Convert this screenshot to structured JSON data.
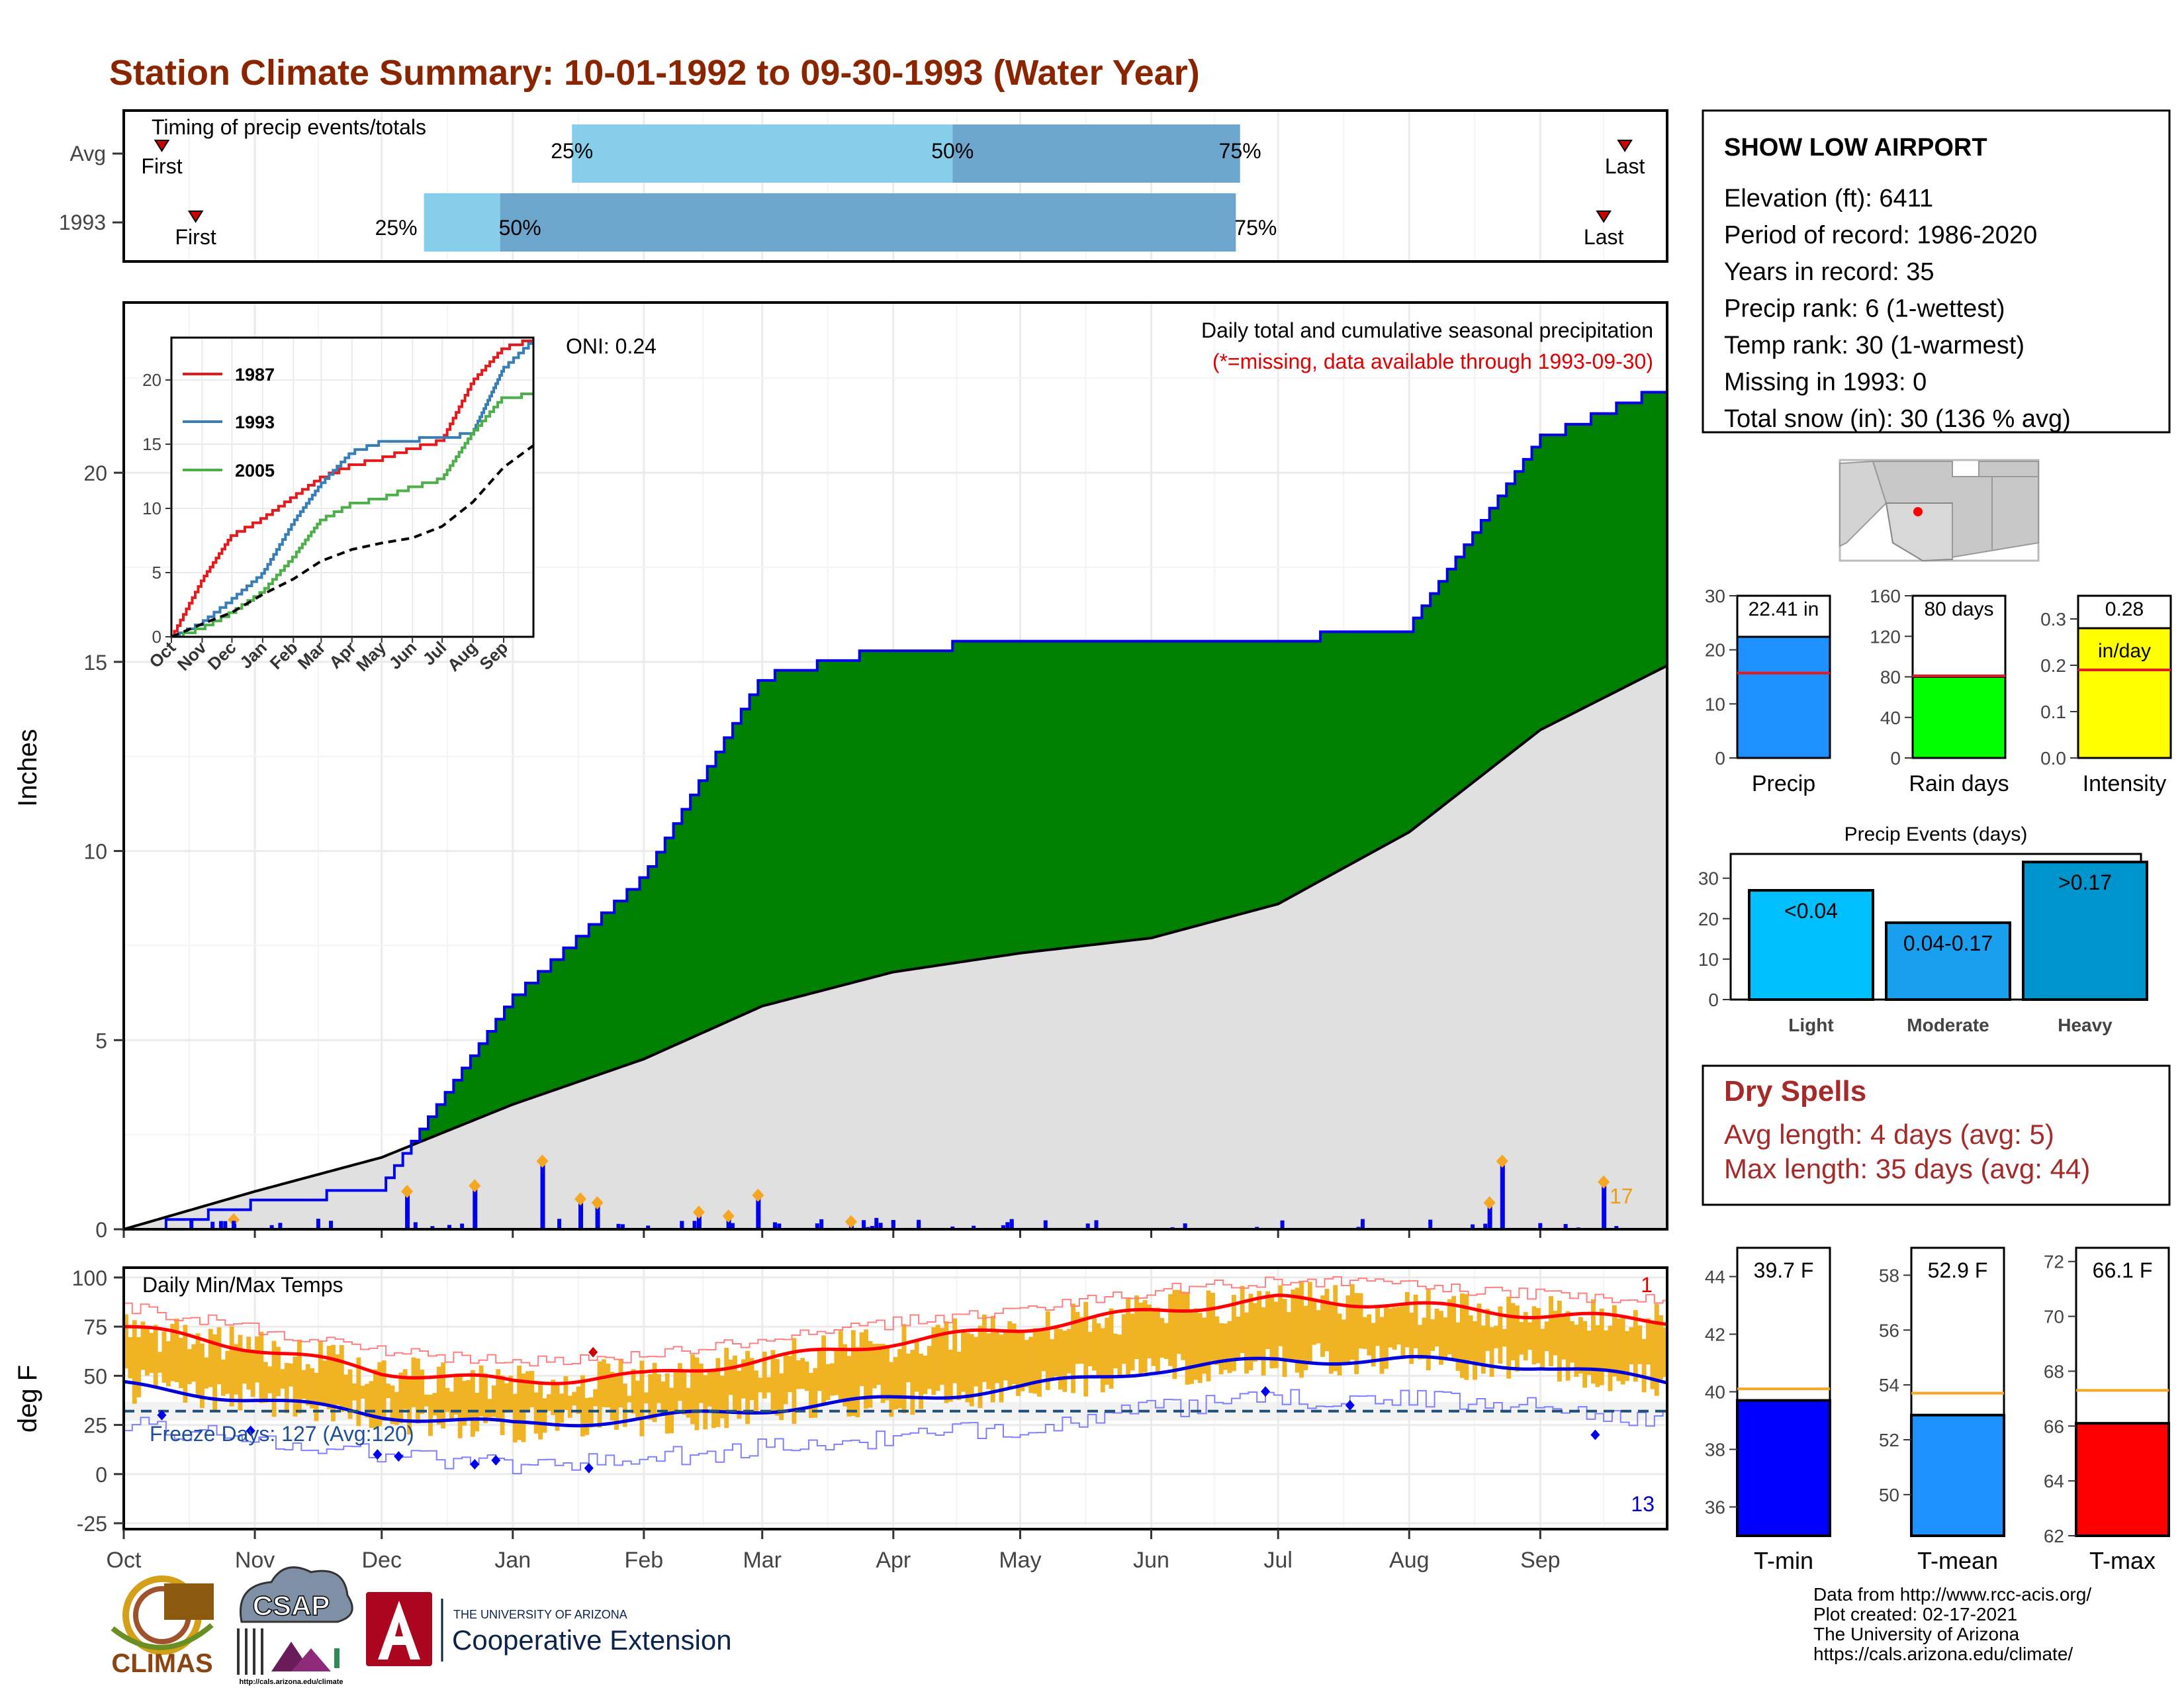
{
  "title": "Station Climate Summary: 10-01-1992 to 09-30-1993 (Water Year)",
  "colors": {
    "title": "#8B2500",
    "obs_fill": "#008000",
    "obs_line": "#0000EE",
    "avg_fill": "#E0E0E0",
    "pre_fill": "#8B5A0E",
    "light_blue": "#87CEEB",
    "mid_blue": "#6CA6CD",
    "dry_red": "#A52A2A",
    "temp_bar": "#F0B323"
  },
  "timing_panel": {
    "label": "Timing of precip events/totals",
    "rows": [
      "Avg",
      "1993"
    ],
    "avg": {
      "first": "First",
      "last": "Last",
      "p25": "25%",
      "p50": "50%",
      "p75": "75%",
      "first_day": 9,
      "p25_day": 106,
      "p50_day": 196,
      "p75_day": 264,
      "last_day": 355
    },
    "obs": {
      "first": "First",
      "last": "Last",
      "p25": "25%",
      "p50": "50%",
      "p75": "75%",
      "first_day": 17,
      "p25_day": 71,
      "p50_day": 89,
      "p75_day": 263,
      "last_day": 350
    }
  },
  "precip_panel": {
    "ylabel": "Inches",
    "note1": "Daily total and cumulative seasonal precipitation",
    "note2": "(*=missing, data available through 1993-09-30)",
    "oni": "ONI: 0.24",
    "corner_value": "17",
    "yticks": [
      "0",
      "5",
      "10",
      "15",
      "20"
    ]
  },
  "inset": {
    "legend": [
      "1987",
      "1993",
      "2005"
    ],
    "yticks": [
      "0",
      "5",
      "10",
      "15",
      "20"
    ],
    "months": [
      "Oct",
      "Nov",
      "Dec",
      "Jan",
      "Feb",
      "Mar",
      "Apr",
      "May",
      "Jun",
      "Jul",
      "Aug",
      "Sep"
    ]
  },
  "temp_panel": {
    "ylabel": "deg F",
    "label": "Daily Min/Max Temps",
    "freeze": "Freeze Days: 127 (Avg:120)",
    "hot_count": "1",
    "cold_count": "13",
    "yticks": [
      "100",
      "75",
      "50",
      "25",
      "0",
      "-25"
    ]
  },
  "months": [
    "Oct",
    "Nov",
    "Dec",
    "Jan",
    "Feb",
    "Mar",
    "Apr",
    "May",
    "Jun",
    "Jul",
    "Aug",
    "Sep"
  ],
  "station": {
    "name": "SHOW LOW AIRPORT",
    "lines": [
      "Elevation (ft): 6411",
      "Period of record: 1986-2020",
      "Years in record: 35",
      "Precip rank: 6 (1-wettest)",
      "Temp rank: 30 (1-warmest)",
      "Missing in 1993: 0",
      "Total snow (in): 30 (136 % avg)"
    ]
  },
  "summary_bars": [
    {
      "name": "Precip",
      "value": 22.41,
      "avg": 15.7,
      "label": "22.41 in",
      "max": 30,
      "ticks": [
        "0",
        "10",
        "20",
        "30"
      ],
      "tickvals": [
        0,
        10,
        20,
        30
      ],
      "color": "#1E90FF"
    },
    {
      "name": "Rain days",
      "value": 80,
      "avg": 81,
      "label": "80 days",
      "max": 160,
      "ticks": [
        "0",
        "40",
        "80",
        "120",
        "160"
      ],
      "tickvals": [
        0,
        40,
        80,
        120,
        160
      ],
      "color": "#00FF00"
    },
    {
      "name": "Intensity",
      "value": 0.28,
      "avg": 0.19,
      "label": "0.28",
      "label2": "in/day",
      "max": 0.35,
      "ticks": [
        "0.0",
        "0.1",
        "0.2",
        "0.3"
      ],
      "tickvals": [
        0,
        0.1,
        0.2,
        0.3
      ],
      "color": "#FFFF00"
    }
  ],
  "events": {
    "title": "Precip Events (days)",
    "categories": [
      "Light",
      "Moderate",
      "Heavy"
    ],
    "labels": [
      "<0.04",
      "0.04-0.17",
      ">0.17"
    ],
    "values": [
      27,
      19,
      34
    ],
    "colors": [
      "#00BFFF",
      "#1A9FEF",
      "#0094CC"
    ],
    "ticks": [
      "0",
      "10",
      "20",
      "30"
    ]
  },
  "dry_spells": {
    "title": "Dry Spells",
    "avg": "Avg length: 4 days (avg: 5)",
    "max": "Max length: 35 days (avg: 44)"
  },
  "temp_bars": [
    {
      "name": "T-min",
      "value": 39.7,
      "avg": 40.1,
      "label": "39.7 F",
      "min": 35,
      "max": 45,
      "ticks": [
        "36",
        "38",
        "40",
        "42",
        "44"
      ],
      "tickvals": [
        36,
        38,
        40,
        42,
        44
      ],
      "color": "#0000FF"
    },
    {
      "name": "T-mean",
      "value": 52.9,
      "avg": 53.7,
      "label": "52.9 F",
      "min": 48.5,
      "max": 59,
      "ticks": [
        "50",
        "52",
        "54",
        "56",
        "58"
      ],
      "tickvals": [
        50,
        52,
        54,
        56,
        58
      ],
      "color": "#1E90FF"
    },
    {
      "name": "T-max",
      "value": 66.1,
      "avg": 67.3,
      "label": "66.1 F",
      "min": 62,
      "max": 72.5,
      "ticks": [
        "62",
        "64",
        "66",
        "68",
        "70",
        "72"
      ],
      "tickvals": [
        62,
        64,
        66,
        68,
        70,
        72
      ],
      "color": "#FF0000"
    }
  ],
  "footer": {
    "lines": [
      "Data from http://www.rcc-acis.org/",
      "Plot created: 02-17-2021",
      "The University of Arizona",
      "https://cals.arizona.edu/climate/"
    ],
    "logo_climas": "CLIMAS",
    "logo_csap": "CSAP",
    "logo_ua_small": "THE UNIVERSITY OF ARIZONA",
    "logo_ua_big": "Cooperative Extension",
    "logo_csap_url": "http://cals.arizona.edu/climate"
  },
  "chart_data": [
    {
      "type": "area",
      "title": "Daily total and cumulative seasonal precipitation",
      "ylabel": "Inches",
      "ylim": [
        0,
        22.41
      ],
      "x": [
        "Oct",
        "Nov",
        "Dec",
        "Jan",
        "Feb",
        "Mar",
        "Apr",
        "May",
        "Jun",
        "Jul",
        "Aug",
        "Sep",
        "end"
      ],
      "series": [
        {
          "name": "1993",
          "values": [
            0,
            0.8,
            1.2,
            6.2,
            9.4,
            14.7,
            15.5,
            15.6,
            15.7,
            15.7,
            16.0,
            21.0,
            22.41
          ]
        },
        {
          "name": "",
          "values": [
            0,
            1.0,
            1.9,
            3.3,
            4.5,
            5.9,
            6.8,
            7.3,
            7.7,
            8.6,
            10.5,
            13.2,
            14.9
          ]
        }
      ],
      "daily_peaks": [
        {
          "day": 26,
          "value": 0.25
        },
        {
          "day": 67,
          "value": 1.0
        },
        {
          "day": 83,
          "value": 1.15
        },
        {
          "day": 99,
          "value": 1.8
        },
        {
          "day": 108,
          "value": 0.8
        },
        {
          "day": 112,
          "value": 0.7
        },
        {
          "day": 136,
          "value": 0.45
        },
        {
          "day": 143,
          "value": 0.35
        },
        {
          "day": 150,
          "value": 0.9
        },
        {
          "day": 172,
          "value": 0.2
        },
        {
          "day": 326,
          "value": 1.8
        },
        {
          "day": 323,
          "value": 0.7
        },
        {
          "day": 350,
          "value": 1.25
        }
      ]
    },
    {
      "type": "line",
      "title": "Daily Min/Max Temps",
      "ylabel": "deg F",
      "ylim": [
        -25,
        100
      ],
      "x": [
        "Oct",
        "Nov",
        "Dec",
        "Jan",
        "Feb",
        "Mar",
        "Apr",
        "May",
        "Jun",
        "Jul",
        "Aug",
        "Sep",
        "end"
      ],
      "series": [
        {
          "name": "",
          "values": [
            75,
            64,
            52,
            47,
            50,
            58,
            67,
            74,
            83,
            89,
            86,
            81,
            78
          ]
        },
        {
          "name": "",
          "values": [
            45,
            38,
            30,
            25,
            28,
            33,
            38,
            44,
            53,
            58,
            58,
            55,
            47
          ]
        }
      ]
    }
  ]
}
